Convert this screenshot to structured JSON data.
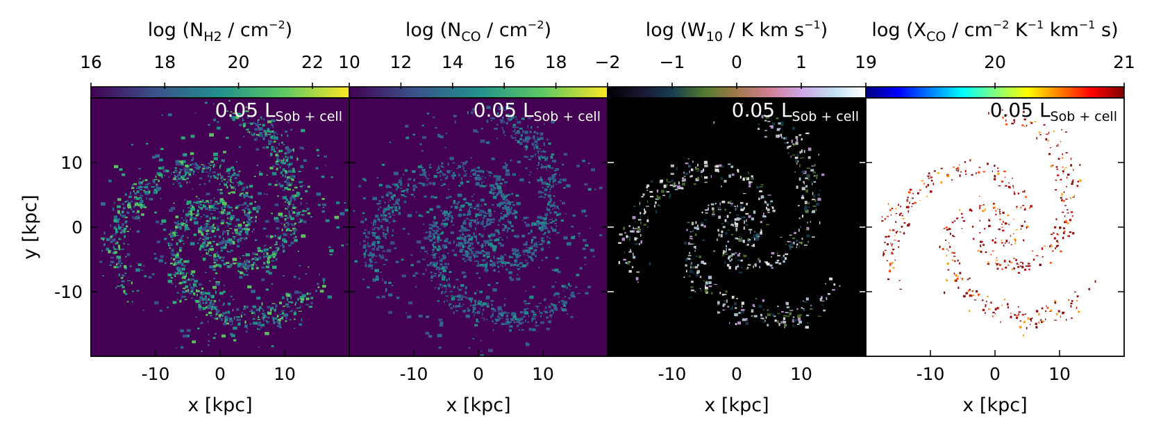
{
  "chart_data": [
    {
      "type": "heatmap",
      "title": "",
      "annotation": {
        "main": "0.05 L",
        "sub": "Sob + cell"
      },
      "colorbar": {
        "label_parts": [
          {
            "t": "log (N",
            "s": "n"
          },
          {
            "t": "H2",
            "s": "sub"
          },
          {
            "t": " / cm",
            "s": "n"
          },
          {
            "t": "−2",
            "s": "sup"
          },
          {
            "t": ")",
            "s": "n"
          }
        ],
        "range": [
          16,
          23
        ],
        "ticks": [
          16,
          18,
          20,
          22
        ],
        "tick_labels": [
          "16",
          "18",
          "20",
          "22"
        ],
        "colormap": "viridis",
        "colors": [
          "#440154",
          "#3b528b",
          "#21918c",
          "#5ec962",
          "#fde725"
        ]
      },
      "background": "#440154",
      "xlabel": "x [kpc]",
      "ylabel": "y [kpc]",
      "xlim": [
        -20,
        20
      ],
      "ylim": [
        -20,
        20
      ],
      "xticks": [
        -10,
        0,
        10
      ],
      "xtick_labels": [
        "-10",
        "0",
        "10"
      ],
      "yticks": [
        10,
        0,
        -10
      ],
      "ytick_labels": [
        "10",
        "0",
        "-10"
      ],
      "map_colors": [
        "#2c728e",
        "#21918c",
        "#28ae80",
        "#5ec962",
        "#3b528b"
      ],
      "density": 1.0
    },
    {
      "type": "heatmap",
      "title": "",
      "annotation": {
        "main": "0.05 L",
        "sub": "Sob + cell"
      },
      "colorbar": {
        "label_parts": [
          {
            "t": "log (N",
            "s": "n"
          },
          {
            "t": "CO",
            "s": "sub"
          },
          {
            "t": " / cm",
            "s": "n"
          },
          {
            "t": "−2",
            "s": "sup"
          },
          {
            "t": ")",
            "s": "n"
          }
        ],
        "range": [
          10,
          20
        ],
        "ticks": [
          10,
          12,
          14,
          16,
          18
        ],
        "tick_labels": [
          "10",
          "12",
          "14",
          "16",
          "18"
        ],
        "colormap": "viridis",
        "colors": [
          "#440154",
          "#3b528b",
          "#21918c",
          "#5ec962",
          "#fde725"
        ]
      },
      "background": "#440154",
      "xlabel": "x [kpc]",
      "ylabel": "",
      "xlim": [
        -20,
        20
      ],
      "ylim": [
        -20,
        20
      ],
      "xticks": [
        -10,
        0,
        10
      ],
      "xtick_labels": [
        "-10",
        "0",
        "10"
      ],
      "yticks": [],
      "ytick_labels": [],
      "map_colors": [
        "#3b528b",
        "#31688e",
        "#2c728e",
        "#21918c",
        "#355f8d"
      ],
      "density": 0.95
    },
    {
      "type": "heatmap",
      "title": "",
      "annotation": {
        "main": "0.05 L",
        "sub": "Sob + cell"
      },
      "colorbar": {
        "label_parts": [
          {
            "t": "log (W",
            "s": "n"
          },
          {
            "t": "10",
            "s": "sub"
          },
          {
            "t": " / K km s",
            "s": "n"
          },
          {
            "t": "−1",
            "s": "sup"
          },
          {
            "t": ")",
            "s": "n"
          }
        ],
        "range": [
          -2,
          2
        ],
        "ticks": [
          -2,
          -1,
          0,
          1
        ],
        "tick_labels": [
          "−2",
          "−1",
          "0",
          "1"
        ],
        "colormap": "cubehelix",
        "colors": [
          "#000000",
          "#1a1530",
          "#163d4e",
          "#54792f",
          "#a07949",
          "#d07e93",
          "#cfa6e6",
          "#c2dff0",
          "#ffffff"
        ]
      },
      "background": "#000000",
      "xlabel": "x [kpc]",
      "ylabel": "",
      "xlim": [
        -20,
        20
      ],
      "ylim": [
        -20,
        20
      ],
      "xticks": [
        -10,
        0,
        10
      ],
      "xtick_labels": [
        "-10",
        "0",
        "10"
      ],
      "yticks": [],
      "ytick_labels": [],
      "map_colors": [
        "#d9d9d9",
        "#cfa6e6",
        "#c2dff0",
        "#ffffff",
        "#54792f",
        "#163d4e"
      ],
      "density": 0.55
    },
    {
      "type": "heatmap",
      "title": "",
      "annotation": {
        "main": "0.05 L",
        "sub": "Sob + cell"
      },
      "colorbar": {
        "label_parts": [
          {
            "t": "log (X",
            "s": "n"
          },
          {
            "t": "CO",
            "s": "sub"
          },
          {
            "t": " / cm",
            "s": "n"
          },
          {
            "t": "−2",
            "s": "sup"
          },
          {
            "t": " K",
            "s": "n"
          },
          {
            "t": "−1",
            "s": "sup"
          },
          {
            "t": " km",
            "s": "n"
          },
          {
            "t": "−1",
            "s": "sup"
          },
          {
            "t": " s)",
            "s": "n"
          }
        ],
        "range": [
          19,
          21
        ],
        "ticks": [
          19,
          20,
          21
        ],
        "tick_labels": [
          "19",
          "20",
          "21"
        ],
        "colormap": "jet",
        "colors": [
          "#00007f",
          "#0000ff",
          "#007fff",
          "#00ffff",
          "#7fff7f",
          "#ffff00",
          "#ff7f00",
          "#ff0000",
          "#7f0000"
        ]
      },
      "background": "#ffffff",
      "xlabel": "x [kpc]",
      "ylabel": "",
      "xlim": [
        -20,
        20
      ],
      "ylim": [
        -20,
        20
      ],
      "xticks": [
        -10,
        0,
        10
      ],
      "xtick_labels": [
        "-10",
        "0",
        "10"
      ],
      "yticks": [],
      "ytick_labels": [],
      "map_colors": [
        "#7f0000",
        "#a00000",
        "#c00000",
        "#ff4000",
        "#ff9000",
        "#8b0000"
      ],
      "density": 0.4
    }
  ]
}
